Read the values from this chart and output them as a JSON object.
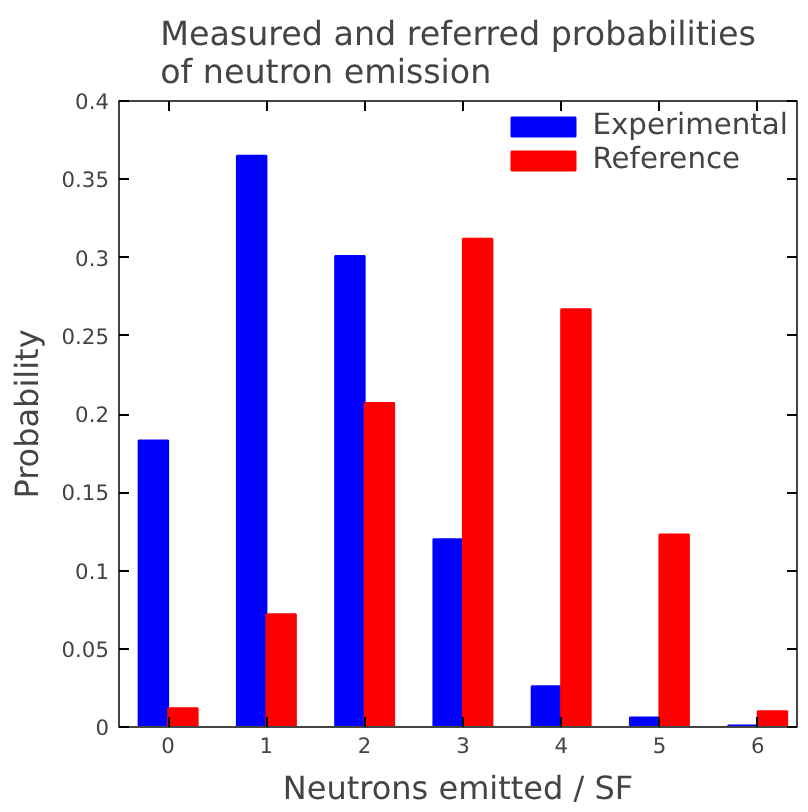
{
  "chart_data": {
    "type": "bar",
    "title": "Measured and referred probabilities\nof neutron emission",
    "xlabel": "Neutrons emitted / SF",
    "ylabel": "Probability",
    "x": [
      0,
      1,
      2,
      3,
      4,
      5,
      6
    ],
    "series": [
      {
        "name": "Experimental",
        "color": "#0000ff",
        "values": [
          0.183,
          0.365,
          0.301,
          0.12,
          0.026,
          0.006,
          0.001
        ]
      },
      {
        "name": "Reference",
        "color": "#ff0000",
        "values": [
          0.012,
          0.072,
          0.207,
          0.312,
          0.267,
          0.123,
          0.01
        ]
      }
    ],
    "xlim": [
      -0.5,
      6.4
    ],
    "xticks": [
      0,
      1,
      2,
      3,
      4,
      5,
      6
    ],
    "ylim": [
      0,
      0.4
    ],
    "yticks": [
      0,
      0.05,
      0.1,
      0.15,
      0.2,
      0.25,
      0.3,
      0.35,
      0.4
    ],
    "grid": false,
    "legend": "top right"
  }
}
